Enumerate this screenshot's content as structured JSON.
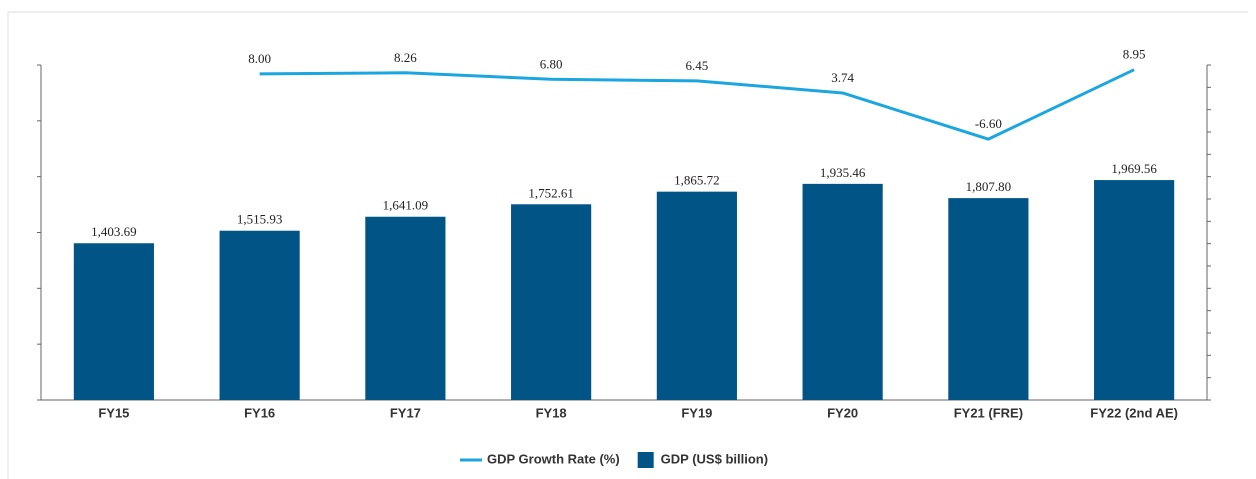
{
  "chart_data": {
    "type": "bar+line",
    "categories": [
      "FY15",
      "FY16",
      "FY17",
      "FY18",
      "FY19",
      "FY20",
      "FY21 (FRE)",
      "FY22 (2nd AE)"
    ],
    "series": [
      {
        "name": "GDP (US$ billion)",
        "type": "bar",
        "color": "#005486",
        "values": [
          1403.69,
          1515.93,
          1641.09,
          1752.61,
          1865.72,
          1935.46,
          1807.8,
          1969.56
        ],
        "value_labels": [
          "1,403.69",
          "1,515.93",
          "1,641.09",
          "1,752.61",
          "1,865.72",
          "1,935.46",
          "1,807.80",
          "1,969.56"
        ]
      },
      {
        "name": "GDP Growth Rate (%)",
        "type": "line",
        "axis": "y2",
        "color": "#1ca6df",
        "values": [
          null,
          8.0,
          8.26,
          6.8,
          6.45,
          3.74,
          -6.6,
          8.95
        ],
        "value_labels": [
          null,
          "8.00",
          "8.26",
          "6.80",
          "6.45",
          "3.74",
          "-6.60",
          "8.95"
        ]
      }
    ],
    "ylim": [
      0,
      3000
    ],
    "yticks": [
      0,
      500,
      1000,
      1500,
      2000,
      2500,
      3000
    ],
    "y2lim": [
      -65,
      10
    ],
    "y2ticks": [
      -65,
      -60,
      -55,
      -50,
      -45,
      -40,
      -35,
      -30,
      -25,
      -20,
      -15,
      -10,
      -5,
      0,
      5,
      10
    ],
    "legend": "bottom"
  }
}
